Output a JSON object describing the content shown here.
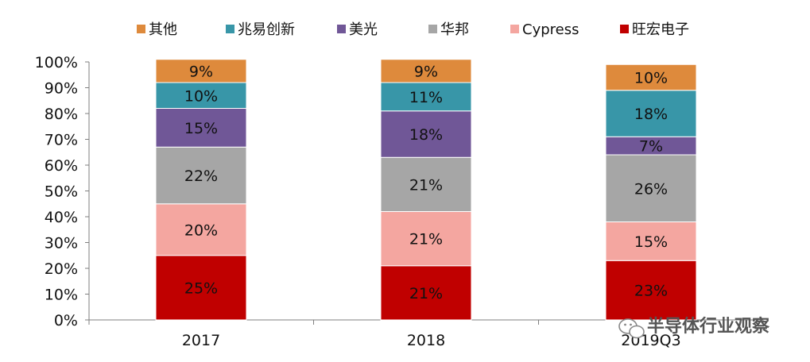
{
  "chart_data": {
    "type": "bar",
    "stacked": true,
    "percent": true,
    "categories": [
      "2017",
      "2018",
      "2019Q3"
    ],
    "series": [
      {
        "name": "旺宏电子",
        "color": "#C00000",
        "values": [
          25,
          21,
          23
        ]
      },
      {
        "name": "Cypress",
        "color": "#F4A6A0",
        "values": [
          20,
          21,
          15
        ]
      },
      {
        "name": "华邦",
        "color": "#A6A6A6",
        "values": [
          22,
          21,
          26
        ]
      },
      {
        "name": "美光",
        "color": "#705797",
        "values": [
          15,
          18,
          7
        ]
      },
      {
        "name": "兆易创新",
        "color": "#3896A8",
        "values": [
          10,
          11,
          18
        ]
      },
      {
        "name": "其他",
        "color": "#DE8A3C",
        "values": [
          9,
          9,
          10
        ]
      }
    ],
    "data_labels": [
      [
        "25%",
        "21%",
        "23%"
      ],
      [
        "20%",
        "21%",
        "15%"
      ],
      [
        "22%",
        "21%",
        "26%"
      ],
      [
        "15%",
        "18%",
        "7%"
      ],
      [
        "10%",
        "11%",
        "18%"
      ],
      [
        "9%",
        "9%",
        "10%"
      ]
    ],
    "legend_order": [
      "其他",
      "兆易创新",
      "美光",
      "华邦",
      "Cypress",
      "旺宏电子"
    ],
    "yticks": [
      "0%",
      "10%",
      "20%",
      "30%",
      "40%",
      "50%",
      "60%",
      "70%",
      "80%",
      "90%",
      "100%"
    ],
    "ylim": [
      0,
      100
    ],
    "legend_position": "top",
    "grid": false,
    "title": "",
    "xlabel": "",
    "ylabel": ""
  },
  "watermark": {
    "text": "半导体行业观察",
    "icon": "wechat-icon"
  }
}
